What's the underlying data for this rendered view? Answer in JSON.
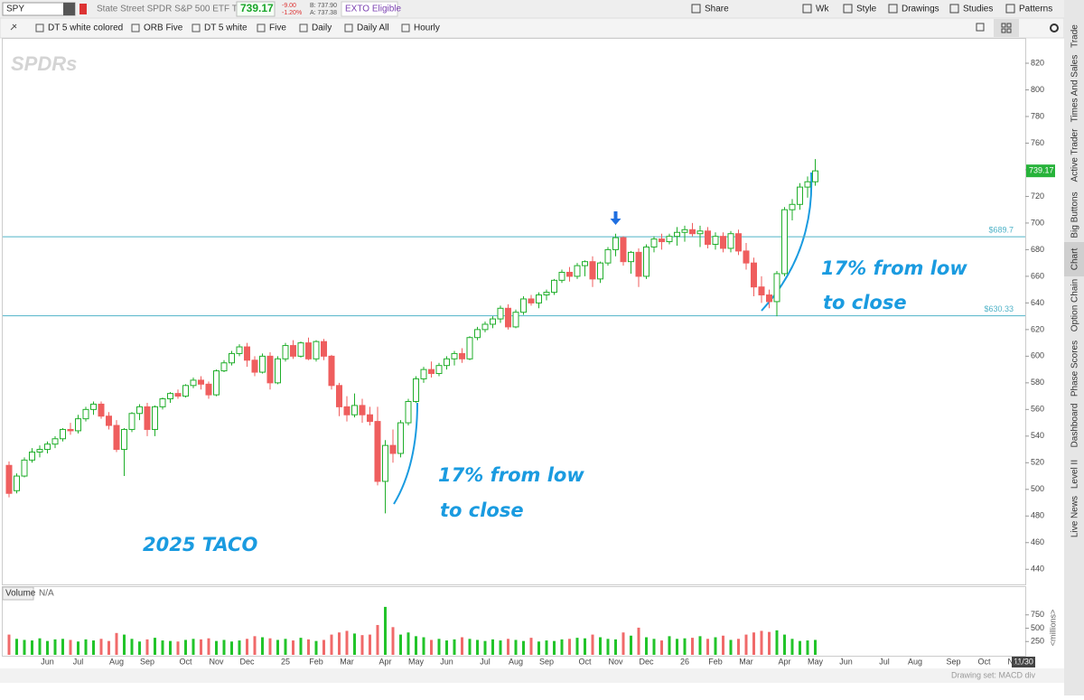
{
  "header": {
    "symbol": "SPY",
    "description": "State Street SPDR S&P 500 ETF Trust",
    "last": "739.17",
    "change": "-9.00",
    "change_pct": "-1.20%",
    "bid": "B: 737.90",
    "ask": "A: 737.38",
    "badge": "EXTO Eligible",
    "buttons": [
      "Share",
      "Wk",
      "Style",
      "Drawings",
      "Studies",
      "Patterns"
    ],
    "logo": "SPDRs"
  },
  "toolbar": {
    "studies": [
      "DT 5 white colored",
      "ORB Five",
      "DT 5 white",
      "Five",
      "Daily",
      "Daily All",
      "Hourly"
    ]
  },
  "sidebar": [
    "Trade",
    "Times And Sales",
    "Active Trader",
    "Big Buttons",
    "Chart",
    "Option Chain",
    "Phase Scores",
    "Dashboard",
    "Level II",
    "Live News"
  ],
  "chart_data": {
    "type": "candlestick",
    "categories": [
      null,
      null,
      null,
      null,
      null,
      "Jun",
      null,
      null,
      null,
      "Jul",
      null,
      null,
      null,
      null,
      "Aug",
      null,
      null,
      null,
      "Sep",
      null,
      null,
      null,
      null,
      "Oct",
      null,
      null,
      null,
      "Nov",
      null,
      null,
      null,
      "Dec",
      null,
      null,
      null,
      null,
      "25",
      null,
      null,
      null,
      "Feb",
      null,
      null,
      null,
      "Mar",
      null,
      null,
      null,
      null,
      "Apr",
      null,
      null,
      null,
      "May",
      null,
      null,
      null,
      "Jun",
      null,
      null,
      null,
      null,
      "Jul",
      null,
      null,
      null,
      "Aug",
      null,
      null,
      null,
      "Sep",
      null,
      null,
      null,
      null,
      "Oct",
      null,
      null,
      null,
      "Nov",
      null,
      null,
      null,
      "Dec",
      null,
      null,
      null,
      null,
      "26",
      null,
      null,
      null,
      "Feb",
      null,
      null,
      null,
      "Mar",
      null,
      null,
      null,
      null,
      "Apr",
      null,
      null,
      null,
      "May",
      null,
      null,
      null,
      "Jun",
      null,
      null,
      null,
      null,
      "Jul",
      null,
      null,
      null,
      "Aug",
      null,
      null,
      null,
      null,
      "Sep",
      null,
      null,
      null,
      "Oct",
      null,
      null,
      null,
      "Nov",
      null
    ],
    "ohlc": [
      [
        518,
        521,
        494,
        497
      ],
      [
        499,
        512,
        497,
        510
      ],
      [
        510,
        524,
        509,
        522
      ],
      [
        522,
        531,
        520,
        528
      ],
      [
        528,
        533,
        524,
        530
      ],
      [
        530,
        536,
        527,
        534
      ],
      [
        534,
        540,
        531,
        538
      ],
      [
        538,
        546,
        536,
        545
      ],
      [
        545,
        550,
        541,
        544
      ],
      [
        544,
        556,
        542,
        553
      ],
      [
        553,
        562,
        551,
        560
      ],
      [
        560,
        566,
        556,
        564
      ],
      [
        564,
        566,
        553,
        555
      ],
      [
        555,
        558,
        545,
        548
      ],
      [
        548,
        552,
        528,
        530
      ],
      [
        530,
        546,
        510,
        545
      ],
      [
        545,
        558,
        543,
        557
      ],
      [
        557,
        564,
        552,
        562
      ],
      [
        562,
        565,
        540,
        545
      ],
      [
        545,
        563,
        540,
        562
      ],
      [
        562,
        569,
        560,
        568
      ],
      [
        568,
        573,
        565,
        572
      ],
      [
        572,
        575,
        568,
        570
      ],
      [
        570,
        579,
        569,
        578
      ],
      [
        578,
        584,
        576,
        582
      ],
      [
        582,
        585,
        575,
        579
      ],
      [
        579,
        581,
        568,
        571
      ],
      [
        571,
        590,
        570,
        589
      ],
      [
        589,
        597,
        588,
        595
      ],
      [
        595,
        604,
        593,
        602
      ],
      [
        602,
        609,
        600,
        607
      ],
      [
        607,
        610,
        592,
        597
      ],
      [
        597,
        600,
        585,
        588
      ],
      [
        588,
        602,
        587,
        600
      ],
      [
        600,
        603,
        575,
        580
      ],
      [
        580,
        600,
        579,
        598
      ],
      [
        598,
        610,
        596,
        608
      ],
      [
        608,
        612,
        598,
        600
      ],
      [
        600,
        611,
        599,
        610
      ],
      [
        610,
        614,
        597,
        598
      ],
      [
        598,
        612,
        596,
        611
      ],
      [
        611,
        613,
        597,
        600
      ],
      [
        600,
        601,
        575,
        578
      ],
      [
        578,
        580,
        555,
        562
      ],
      [
        562,
        570,
        551,
        556
      ],
      [
        556,
        572,
        554,
        563
      ],
      [
        563,
        568,
        550,
        556
      ],
      [
        556,
        562,
        548,
        551
      ],
      [
        551,
        562,
        503,
        506
      ],
      [
        506,
        537,
        482,
        533
      ],
      [
        533,
        545,
        520,
        527
      ],
      [
        527,
        552,
        524,
        550
      ],
      [
        550,
        568,
        548,
        566
      ],
      [
        566,
        585,
        565,
        583
      ],
      [
        583,
        592,
        580,
        590
      ],
      [
        590,
        596,
        584,
        587
      ],
      [
        587,
        595,
        585,
        593
      ],
      [
        593,
        600,
        590,
        598
      ],
      [
        598,
        604,
        593,
        602
      ],
      [
        602,
        606,
        595,
        598
      ],
      [
        598,
        615,
        597,
        614
      ],
      [
        614,
        622,
        612,
        620
      ],
      [
        620,
        626,
        618,
        624
      ],
      [
        624,
        630,
        621,
        628
      ],
      [
        628,
        638,
        625,
        636
      ],
      [
        636,
        639,
        620,
        622
      ],
      [
        622,
        635,
        621,
        633
      ],
      [
        633,
        645,
        631,
        643
      ],
      [
        643,
        646,
        638,
        640
      ],
      [
        640,
        648,
        636,
        646
      ],
      [
        646,
        650,
        642,
        648
      ],
      [
        648,
        658,
        646,
        657
      ],
      [
        657,
        665,
        655,
        663
      ],
      [
        663,
        667,
        656,
        660
      ],
      [
        660,
        670,
        658,
        668
      ],
      [
        668,
        672,
        660,
        671
      ],
      [
        671,
        675,
        652,
        658
      ],
      [
        658,
        671,
        655,
        670
      ],
      [
        670,
        682,
        668,
        680
      ],
      [
        680,
        692,
        675,
        689
      ],
      [
        689,
        690,
        668,
        671
      ],
      [
        671,
        679,
        662,
        678
      ],
      [
        678,
        681,
        652,
        660
      ],
      [
        660,
        684,
        658,
        682
      ],
      [
        682,
        690,
        678,
        688
      ],
      [
        688,
        692,
        680,
        686
      ],
      [
        686,
        692,
        684,
        690
      ],
      [
        690,
        697,
        683,
        693
      ],
      [
        693,
        698,
        686,
        695
      ],
      [
        695,
        700,
        690,
        692
      ],
      [
        692,
        698,
        682,
        694
      ],
      [
        694,
        697,
        681,
        684
      ],
      [
        684,
        693,
        680,
        690
      ],
      [
        690,
        693,
        678,
        681
      ],
      [
        681,
        694,
        678,
        692
      ],
      [
        692,
        695,
        676,
        679
      ],
      [
        679,
        685,
        665,
        670
      ],
      [
        670,
        674,
        645,
        652
      ],
      [
        652,
        660,
        640,
        646
      ],
      [
        646,
        650,
        636,
        641
      ],
      [
        641,
        664,
        630,
        662
      ],
      [
        662,
        712,
        660,
        710
      ],
      [
        710,
        718,
        702,
        714
      ],
      [
        714,
        730,
        710,
        727
      ],
      [
        727,
        735,
        719,
        731
      ],
      [
        731,
        748,
        728,
        739.17
      ],
      null,
      null,
      null,
      null,
      null,
      null,
      null,
      null,
      null,
      null,
      null,
      null,
      null,
      null,
      null,
      null,
      null,
      null,
      null,
      null,
      null,
      null,
      null,
      null,
      null,
      null,
      null
    ],
    "up_color": "#1fae2a",
    "down_color": "#ef5e5e",
    "ylim": [
      430,
      839
    ],
    "yticks": [
      440,
      460,
      480,
      500,
      520,
      540,
      560,
      580,
      600,
      620,
      640,
      660,
      680,
      700,
      720,
      740,
      760,
      780,
      800,
      820
    ],
    "grid": false,
    "last_price": 739.17,
    "hlines": [
      {
        "value": 689.7,
        "label": "$689.7"
      },
      {
        "value": 630.33,
        "label": "$630.33"
      }
    ],
    "hline_color": "#4fb3c8",
    "annotations": [
      "17% from low",
      "to close",
      "17% from low",
      "to close",
      "2025 TACO"
    ],
    "annotation_color": "#1a9be0",
    "volume": {
      "title": "Volume",
      "value_text": "N/A",
      "unit": "<millions>",
      "ylim": [
        0,
        1000
      ],
      "yticks": [
        250,
        500,
        750
      ],
      "values": [
        380,
        300,
        280,
        270,
        310,
        260,
        290,
        300,
        280,
        250,
        290,
        270,
        300,
        260,
        410,
        380,
        300,
        250,
        290,
        320,
        270,
        260,
        250,
        280,
        300,
        290,
        310,
        260,
        280,
        250,
        270,
        300,
        350,
        330,
        310,
        280,
        300,
        270,
        320,
        290,
        260,
        280,
        380,
        420,
        450,
        400,
        370,
        380,
        560,
        900,
        520,
        380,
        420,
        350,
        330,
        280,
        300,
        270,
        290,
        330,
        300,
        280,
        260,
        290,
        270,
        300,
        280,
        260,
        320,
        250,
        270,
        260,
        290,
        300,
        320,
        310,
        380,
        330,
        300,
        290,
        420,
        360,
        510,
        330,
        300,
        270,
        350,
        300,
        310,
        320,
        350,
        300,
        330,
        360,
        280,
        300,
        380,
        420,
        450,
        430,
        460,
        380,
        300,
        260,
        270,
        280,
        null,
        null,
        null,
        null,
        null,
        null,
        null,
        null,
        null,
        null,
        null,
        null,
        null,
        null,
        null,
        null,
        null,
        null,
        null,
        null,
        null,
        null,
        null,
        null,
        null,
        null,
        null
      ]
    },
    "range_label": "11/30",
    "drawing_set": "Drawing set: MACD div"
  }
}
